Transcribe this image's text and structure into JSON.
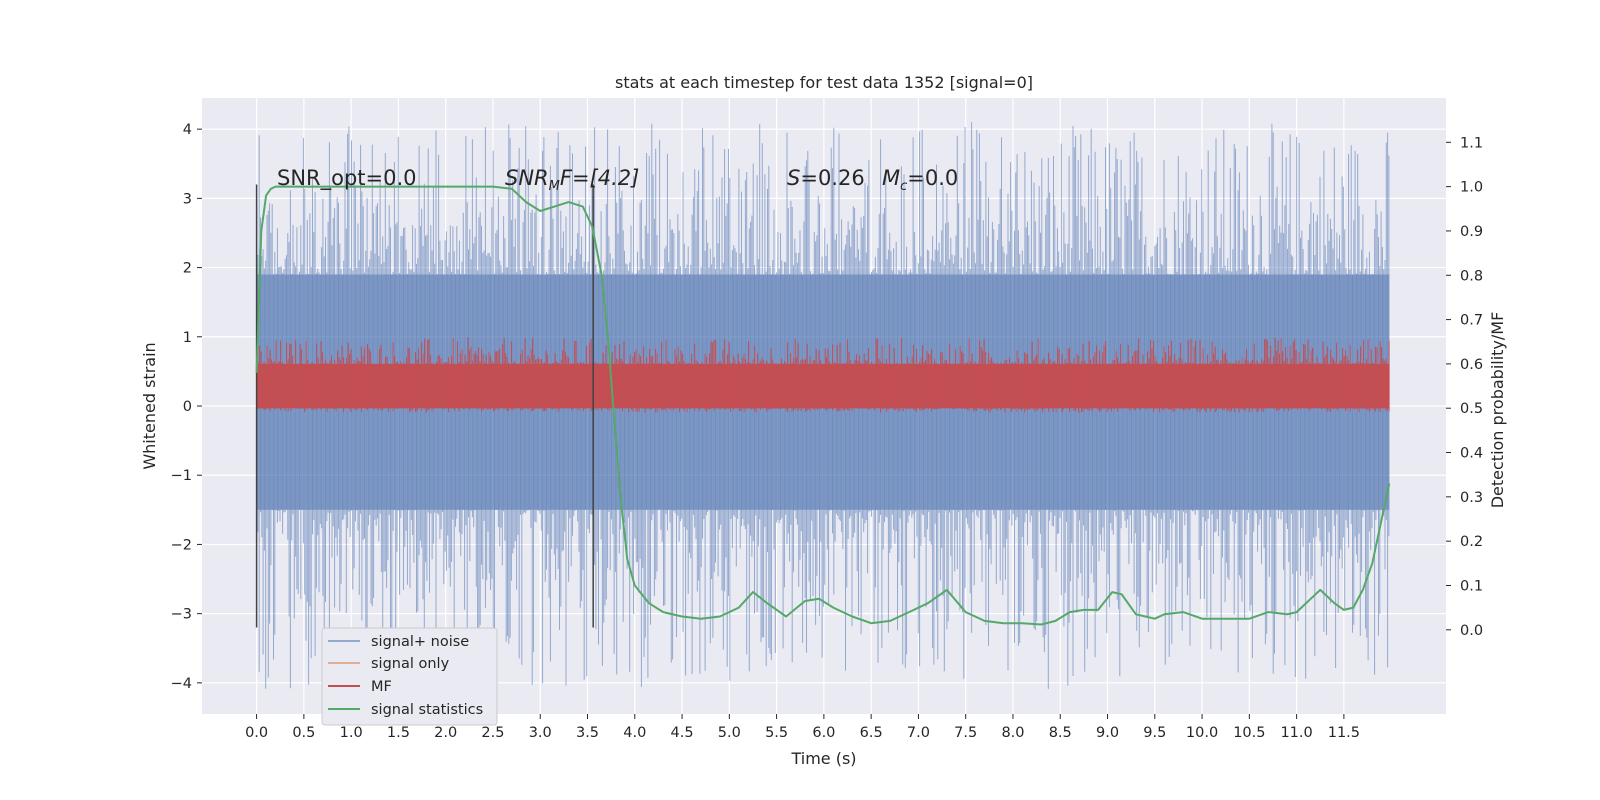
{
  "chart_data": {
    "type": "line",
    "title": "stats at each timestep for test data 1352 [signal=0]",
    "xlabel": "Time (s)",
    "ylabel_left": "Whitened strain",
    "ylabel_right": "Detection probability/MF",
    "xlim": [
      -0.5775,
      12.58
    ],
    "ylim_left": [
      -4.45,
      4.45
    ],
    "ylim_right": [
      -0.19,
      1.2
    ],
    "grid": true,
    "legend_position": "lower-left",
    "xticks": [
      "0.0",
      "0.5",
      "1.0",
      "1.5",
      "2.0",
      "2.5",
      "3.0",
      "3.5",
      "4.0",
      "4.5",
      "5.0",
      "5.5",
      "6.0",
      "6.5",
      "7.0",
      "7.5",
      "8.0",
      "8.5",
      "9.0",
      "9.5",
      "10.0",
      "10.5",
      "11.0",
      "11.5"
    ],
    "xtick_values": [
      0,
      0.5,
      1,
      1.5,
      2,
      2.5,
      3,
      3.5,
      4,
      4.5,
      5,
      5.5,
      6,
      6.5,
      7,
      7.5,
      8,
      8.5,
      9,
      9.5,
      10,
      10.5,
      11,
      11.5
    ],
    "yticks_left": [
      "−4",
      "−3",
      "−2",
      "−1",
      "0",
      "1",
      "2",
      "3",
      "4"
    ],
    "ytick_values_left": [
      -4,
      -3,
      -2,
      -1,
      0,
      1,
      2,
      3,
      4
    ],
    "yticks_right": [
      "0.0",
      "0.1",
      "0.2",
      "0.3",
      "0.4",
      "0.5",
      "0.6",
      "0.7",
      "0.8",
      "0.9",
      "1.0",
      "1.1"
    ],
    "ytick_values_right": [
      0,
      0.1,
      0.2,
      0.3,
      0.4,
      0.5,
      0.6,
      0.7,
      0.8,
      0.9,
      1.0,
      1.1
    ],
    "annotations": {
      "snr_opt": "SNR_opt=0.0",
      "snr_mf_main": "SNR",
      "snr_mf_sub": "M",
      "snr_mf_rest": "F=[4.2]",
      "s_label": "S",
      "s_value": "=0.26",
      "mc_label": "M",
      "mc_sub": "c",
      "mc_value": "=0.0"
    },
    "vertical_markers": [
      0.0,
      3.56
    ],
    "series": [
      {
        "name": "signal+ noise",
        "color": "#4c72b0",
        "axis": "left",
        "band": {
          "x_start": 0.0,
          "x_end": 11.98,
          "typical_range": [
            -1.5,
            1.9
          ],
          "max": 4.1,
          "min": -4.1
        }
      },
      {
        "name": "signal only",
        "color": "#dd8452",
        "axis": "left",
        "values": []
      },
      {
        "name": "MF",
        "color": "#c44e52",
        "axis": "right",
        "band": {
          "x_start": 0.0,
          "x_end": 11.98,
          "typical_range": [
            0.5,
            0.6
          ],
          "max": 0.66,
          "min": 0.49
        }
      },
      {
        "name": "signal statistics",
        "color": "#55a868",
        "axis": "right",
        "x": [
          0.0,
          0.05,
          0.1,
          0.15,
          0.2,
          0.3,
          0.5,
          1.0,
          1.5,
          2.0,
          2.5,
          2.7,
          2.85,
          3.0,
          3.15,
          3.3,
          3.45,
          3.55,
          3.65,
          3.72,
          3.78,
          3.85,
          3.92,
          4.0,
          4.15,
          4.3,
          4.5,
          4.7,
          4.9,
          5.1,
          5.25,
          5.4,
          5.6,
          5.8,
          5.95,
          6.1,
          6.3,
          6.5,
          6.7,
          6.9,
          7.1,
          7.3,
          7.5,
          7.7,
          7.9,
          8.1,
          8.3,
          8.45,
          8.6,
          8.75,
          8.9,
          9.05,
          9.15,
          9.3,
          9.5,
          9.6,
          9.8,
          10.0,
          10.25,
          10.5,
          10.7,
          10.9,
          11.0,
          11.2,
          11.25,
          11.4,
          11.5,
          11.6,
          11.7,
          11.8,
          11.9,
          11.98
        ],
        "y": [
          0.58,
          0.9,
          0.98,
          0.995,
          1.0,
          1.0,
          1.0,
          1.0,
          1.0,
          1.0,
          1.0,
          0.995,
          0.965,
          0.945,
          0.955,
          0.965,
          0.955,
          0.91,
          0.8,
          0.65,
          0.48,
          0.3,
          0.16,
          0.1,
          0.06,
          0.04,
          0.03,
          0.025,
          0.03,
          0.05,
          0.085,
          0.06,
          0.03,
          0.065,
          0.07,
          0.05,
          0.03,
          0.015,
          0.02,
          0.04,
          0.06,
          0.09,
          0.04,
          0.02,
          0.015,
          0.015,
          0.012,
          0.02,
          0.04,
          0.045,
          0.045,
          0.085,
          0.08,
          0.035,
          0.025,
          0.035,
          0.04,
          0.025,
          0.025,
          0.025,
          0.04,
          0.035,
          0.04,
          0.08,
          0.09,
          0.06,
          0.045,
          0.05,
          0.09,
          0.15,
          0.25,
          0.33
        ]
      }
    ]
  }
}
